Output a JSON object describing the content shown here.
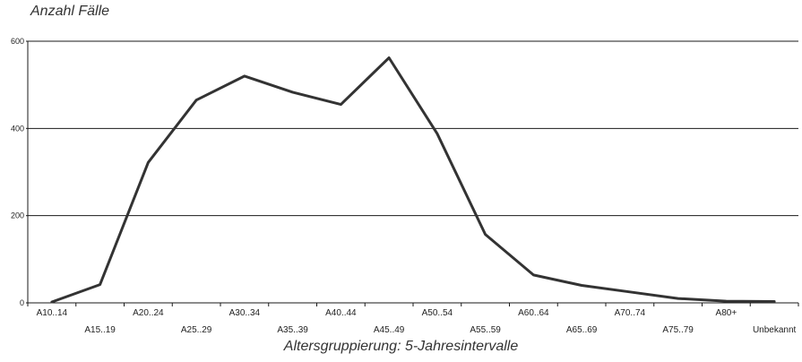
{
  "chart_data": {
    "type": "line",
    "title": "",
    "ylabel": "Anzahl Fälle",
    "xlabel": "Altersgruppierung: 5-Jahresintervalle",
    "ylim": [
      0,
      600
    ],
    "yticks": [
      0,
      200,
      400,
      600
    ],
    "grid": true,
    "legend": "none",
    "categories": [
      "A10..14",
      "A15..19",
      "A20..24",
      "A25..29",
      "A30..34",
      "A35..39",
      "A40..44",
      "A45..49",
      "A50..54",
      "A55..59",
      "A60..64",
      "A65..69",
      "A70..74",
      "A75..79",
      "A80+",
      "Unbekannt"
    ],
    "series": [
      {
        "values": [
          2,
          42,
          322,
          465,
          520,
          483,
          455,
          562,
          388,
          157,
          64,
          40,
          25,
          10,
          4,
          3
        ],
        "color": "#333333"
      }
    ]
  }
}
